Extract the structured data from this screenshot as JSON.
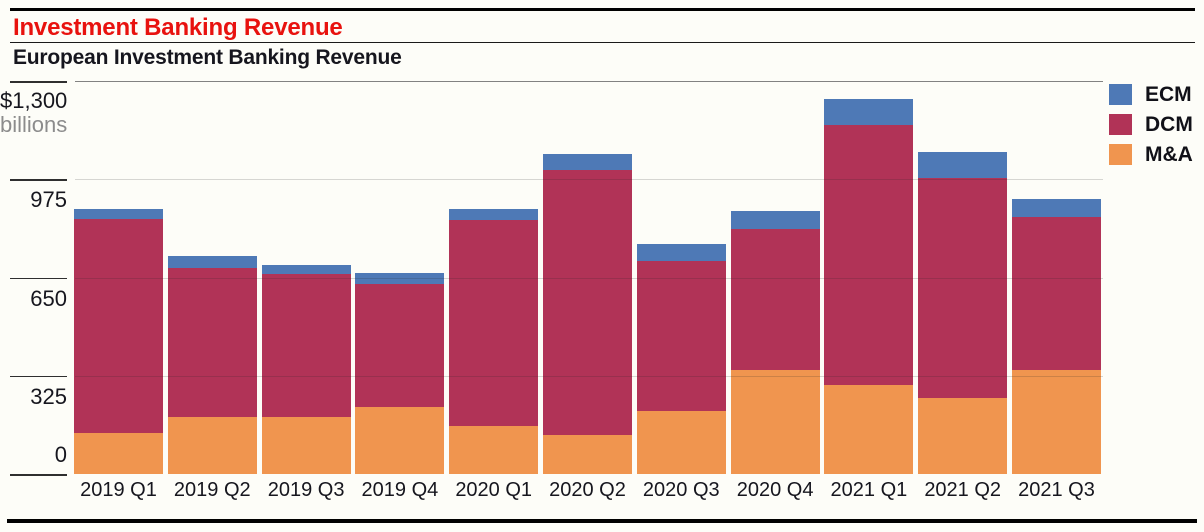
{
  "header": {
    "title": "Investment Banking Revenue",
    "subtitle": "European Investment Banking Revenue"
  },
  "y_axis": {
    "max_label": "$1,300",
    "unit_label": "billions",
    "tick_labels": [
      "975",
      "650",
      "325",
      "0"
    ],
    "tick_values": [
      975,
      650,
      325,
      0
    ],
    "max_value": 1300
  },
  "legend": {
    "items": [
      {
        "label": "ECM",
        "color": "#4e79b6"
      },
      {
        "label": "DCM",
        "color": "#b13357"
      },
      {
        "label": "M&A",
        "color": "#f0954f"
      }
    ]
  },
  "chart_data": {
    "type": "bar",
    "stacked": true,
    "title": "European Investment Banking Revenue",
    "unit": "$ billions",
    "categories": [
      "2019 Q1",
      "2019 Q2",
      "2019 Q3",
      "2019 Q4",
      "2020 Q1",
      "2020 Q2",
      "2020 Q3",
      "2020 Q4",
      "2021 Q1",
      "2021 Q2",
      "2021 Q3"
    ],
    "series": [
      {
        "name": "M&A",
        "color": "#f0954f",
        "values": [
          135,
          190,
          190,
          220,
          160,
          130,
          210,
          345,
          295,
          250,
          345
        ]
      },
      {
        "name": "DCM",
        "color": "#b13357",
        "values": [
          710,
          490,
          470,
          410,
          680,
          875,
          495,
          465,
          860,
          730,
          505
        ]
      },
      {
        "name": "ECM",
        "color": "#4e79b6",
        "values": [
          30,
          40,
          30,
          35,
          35,
          55,
          55,
          60,
          85,
          85,
          60
        ]
      }
    ],
    "totals": [
      875,
      720,
      690,
      665,
      875,
      1060,
      760,
      870,
      1240,
      1065,
      910
    ],
    "ylim": [
      0,
      1300
    ],
    "yticks": [
      0,
      325,
      650,
      975,
      1300
    ],
    "legend_position": "top-right",
    "grid": "horizontal",
    "accent_title_color": "#e8120e"
  }
}
